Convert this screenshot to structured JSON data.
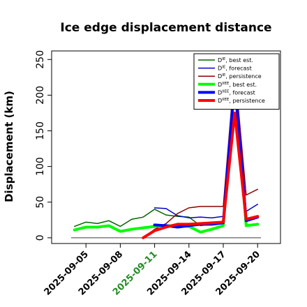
{
  "chart_data": {
    "type": "line",
    "title": "Ice edge displacement distance",
    "xlabel": "",
    "ylabel": "Displacement (km)",
    "ylim": [
      -8,
      262
    ],
    "yticks": [
      0,
      50,
      100,
      150,
      200,
      250
    ],
    "xlim": [
      "2025-09-02",
      "2025-09-22"
    ],
    "xticks": [
      "2025-09-05",
      "2025-09-08",
      "2025-09-11",
      "2025-09-14",
      "2025-09-17",
      "2025-09-20"
    ],
    "highlight_tick": "2025-09-11",
    "highlight_color": "#228B22",
    "grid": false,
    "legend_position": "top-right",
    "reference_line": {
      "y": 0,
      "color": "#555555"
    },
    "series": [
      {
        "name": "D",
        "sup": "IE",
        "suffix": ", best est.",
        "color": "#006400",
        "width": 1.5,
        "points": [
          [
            "2025-09-04",
            16
          ],
          [
            "2025-09-05",
            22
          ],
          [
            "2025-09-06",
            20
          ],
          [
            "2025-09-07",
            24
          ],
          [
            "2025-09-08",
            16
          ],
          [
            "2025-09-09",
            26
          ],
          [
            "2025-09-10",
            29
          ],
          [
            "2025-09-11",
            40
          ],
          [
            "2025-09-12",
            32
          ],
          [
            "2025-09-13",
            30
          ],
          [
            "2025-09-14",
            29
          ],
          [
            "2025-09-15",
            17
          ],
          [
            "2025-09-16",
            19
          ],
          [
            "2025-09-17",
            22
          ],
          [
            "2025-09-18",
            238
          ],
          [
            "2025-09-19",
            27
          ],
          [
            "2025-09-20",
            29
          ]
        ]
      },
      {
        "name": "D",
        "sup": "IE",
        "suffix": ", forecast",
        "color": "#0000CD",
        "width": 1.5,
        "points": [
          [
            "2025-09-11",
            42
          ],
          [
            "2025-09-12",
            41
          ],
          [
            "2025-09-13",
            31
          ],
          [
            "2025-09-14",
            28
          ],
          [
            "2025-09-15",
            29
          ],
          [
            "2025-09-16",
            28
          ],
          [
            "2025-09-17",
            30
          ],
          [
            "2025-09-18",
            238
          ],
          [
            "2025-09-19",
            37
          ],
          [
            "2025-09-20",
            47
          ]
        ]
      },
      {
        "name": "D",
        "sup": "IE",
        "suffix": ", persistence",
        "color": "#8B0000",
        "width": 1.5,
        "points": [
          [
            "2025-09-10",
            0
          ],
          [
            "2025-09-11",
            12
          ],
          [
            "2025-09-12",
            20
          ],
          [
            "2025-09-13",
            34
          ],
          [
            "2025-09-14",
            42
          ],
          [
            "2025-09-15",
            44
          ],
          [
            "2025-09-16",
            44
          ],
          [
            "2025-09-17",
            44
          ],
          [
            "2025-09-18",
            238
          ],
          [
            "2025-09-19",
            60
          ],
          [
            "2025-09-20",
            68
          ]
        ]
      },
      {
        "name": "D",
        "sup": "IIEE",
        "suffix": ", best est.",
        "color": "#00FF00",
        "width": 4,
        "points": [
          [
            "2025-09-04",
            11
          ],
          [
            "2025-09-05",
            15
          ],
          [
            "2025-09-06",
            15
          ],
          [
            "2025-09-07",
            17
          ],
          [
            "2025-09-08",
            9
          ],
          [
            "2025-09-09",
            12
          ],
          [
            "2025-09-10",
            14
          ],
          [
            "2025-09-11",
            16
          ],
          [
            "2025-09-12",
            17
          ],
          [
            "2025-09-13",
            17
          ],
          [
            "2025-09-14",
            16
          ],
          [
            "2025-09-15",
            8
          ],
          [
            "2025-09-16",
            12
          ],
          [
            "2025-09-17",
            17
          ],
          [
            "2025-09-18",
            220
          ],
          [
            "2025-09-19",
            17
          ],
          [
            "2025-09-20",
            19
          ]
        ]
      },
      {
        "name": "D",
        "sup": "IIEE",
        "suffix": ", forecast",
        "color": "#0000FF",
        "width": 4,
        "points": [
          [
            "2025-09-11",
            18
          ],
          [
            "2025-09-12",
            17
          ],
          [
            "2025-09-13",
            15
          ],
          [
            "2025-09-14",
            17
          ],
          [
            "2025-09-15",
            19
          ],
          [
            "2025-09-16",
            19
          ],
          [
            "2025-09-17",
            21
          ],
          [
            "2025-09-18",
            220
          ],
          [
            "2025-09-19",
            24
          ],
          [
            "2025-09-20",
            29
          ]
        ]
      },
      {
        "name": "D",
        "sup": "IIEE",
        "suffix": ", persistence",
        "color": "#FF0000",
        "width": 4,
        "points": [
          [
            "2025-09-10",
            0
          ],
          [
            "2025-09-11",
            10
          ],
          [
            "2025-09-12",
            15
          ],
          [
            "2025-09-13",
            19
          ],
          [
            "2025-09-14",
            19
          ],
          [
            "2025-09-15",
            20
          ],
          [
            "2025-09-16",
            21
          ],
          [
            "2025-09-17",
            22
          ],
          [
            "2025-09-18",
            175
          ],
          [
            "2025-09-19",
            26
          ],
          [
            "2025-09-20",
            30
          ]
        ]
      }
    ]
  }
}
